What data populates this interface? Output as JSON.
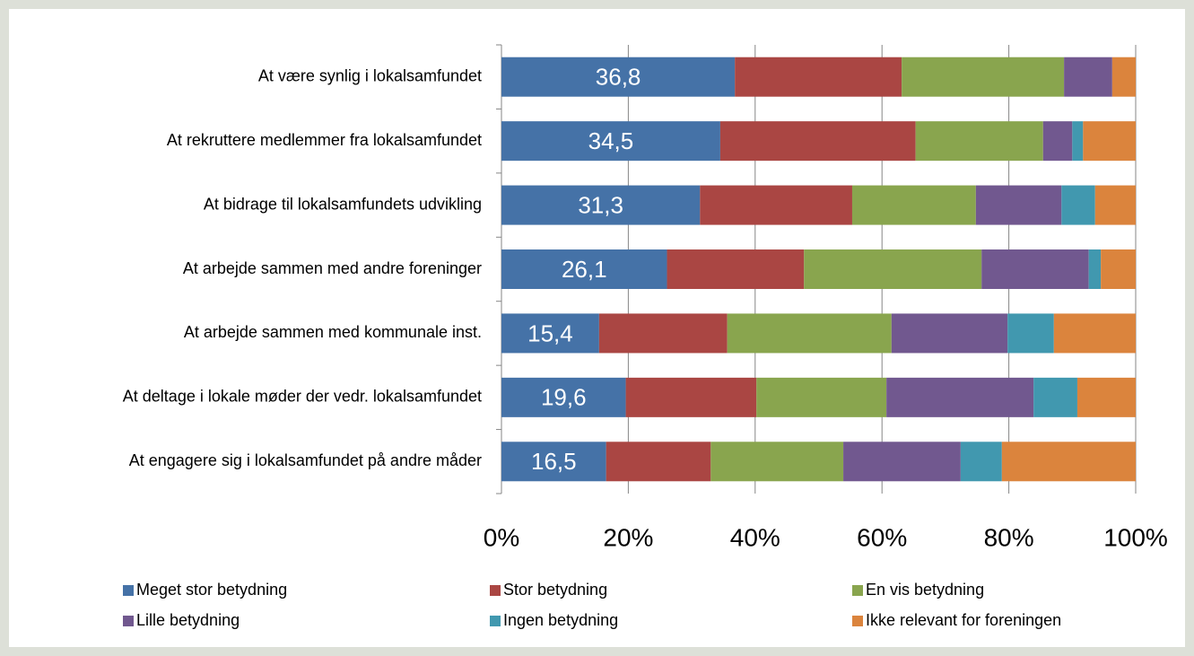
{
  "chart_data": {
    "type": "stacked-barh",
    "categories": [
      "At være synlig i lokalsamfundet",
      "At rekruttere medlemmer fra lokalsamfundet",
      "At bidrage til lokalsamfundets udvikling",
      "At arbejde sammen med andre foreninger",
      "At arbejde sammen med kommunale inst.",
      "At deltage i lokale møder der vedr. lokalsamfundet",
      "At engagere sig i lokalsamfundet på andre måder"
    ],
    "series": [
      {
        "name": "Meget stor betydning",
        "color": "#4572a7",
        "values": [
          36.8,
          34.5,
          31.3,
          26.1,
          15.4,
          19.6,
          16.5
        ],
        "value_labels": [
          "36,8",
          "34,5",
          "31,3",
          "26,1",
          "15,4",
          "19,6",
          "16,5"
        ]
      },
      {
        "name": "Stor betydning",
        "color": "#aa4643",
        "values": [
          26.3,
          30.8,
          24.0,
          21.6,
          20.2,
          20.6,
          16.5
        ]
      },
      {
        "name": "En vis betydning",
        "color": "#89a54e",
        "values": [
          25.6,
          20.1,
          19.5,
          28.0,
          25.9,
          20.5,
          20.9
        ]
      },
      {
        "name": "Lille betydning",
        "color": "#71588f",
        "values": [
          7.6,
          4.6,
          13.5,
          16.9,
          18.3,
          23.2,
          18.5
        ]
      },
      {
        "name": "Ingen betydning",
        "color": "#4198af",
        "values": [
          0,
          1.7,
          5.3,
          1.9,
          7.3,
          6.9,
          6.5
        ]
      },
      {
        "name": "Ikke relevant for foreningen",
        "color": "#db843d",
        "values": [
          3.7,
          8.3,
          6.4,
          5.5,
          12.9,
          9.2,
          21.1
        ]
      }
    ],
    "xlim": [
      0,
      100
    ],
    "xticks": [
      {
        "value": 0,
        "label": "0%"
      },
      {
        "value": 20,
        "label": "20%"
      },
      {
        "value": 40,
        "label": "40%"
      },
      {
        "value": 60,
        "label": "60%"
      },
      {
        "value": 80,
        "label": "80%"
      },
      {
        "value": 100,
        "label": "100%"
      }
    ],
    "grid": true
  }
}
